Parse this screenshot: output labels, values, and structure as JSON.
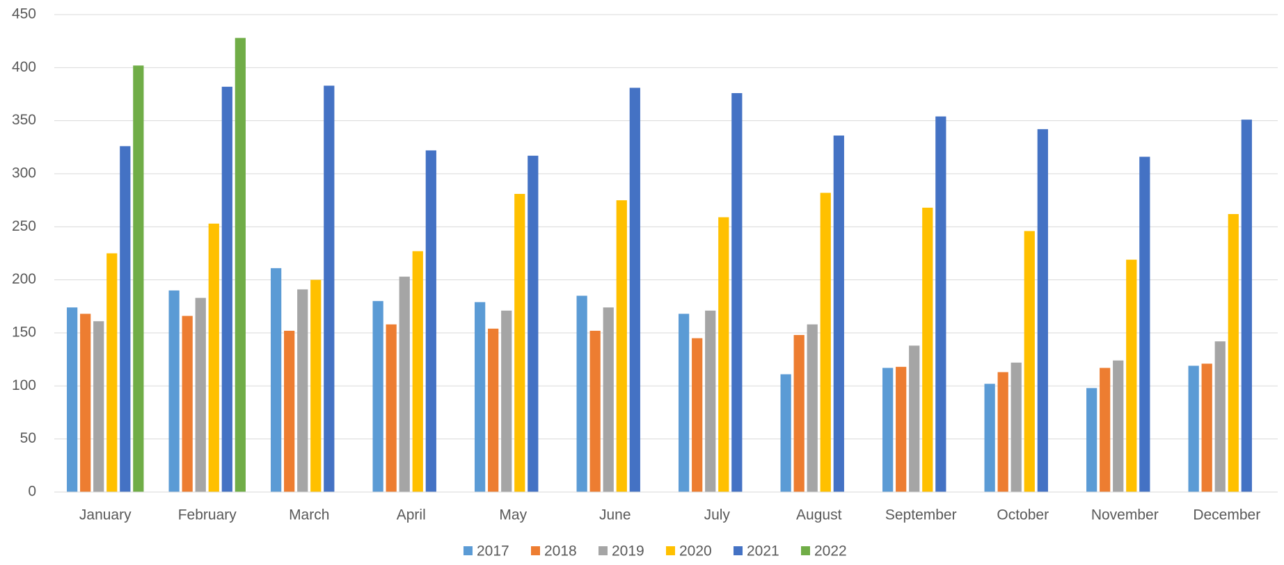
{
  "chart_data": {
    "type": "bar",
    "categories": [
      "January",
      "February",
      "March",
      "April",
      "May",
      "June",
      "July",
      "August",
      "September",
      "October",
      "November",
      "December"
    ],
    "series": [
      {
        "name": "2017",
        "color": "#5b9bd5",
        "values": [
          174,
          190,
          211,
          180,
          179,
          185,
          168,
          111,
          117,
          102,
          98,
          119
        ]
      },
      {
        "name": "2018",
        "color": "#ed7d31",
        "values": [
          168,
          166,
          152,
          158,
          154,
          152,
          145,
          148,
          118,
          113,
          117,
          121
        ]
      },
      {
        "name": "2019",
        "color": "#a5a5a5",
        "values": [
          161,
          183,
          191,
          203,
          171,
          174,
          171,
          158,
          138,
          122,
          124,
          142
        ]
      },
      {
        "name": "2020",
        "color": "#ffc000",
        "values": [
          225,
          253,
          200,
          227,
          281,
          275,
          259,
          282,
          268,
          246,
          219,
          262
        ]
      },
      {
        "name": "2021",
        "color": "#4472c4",
        "values": [
          326,
          382,
          383,
          322,
          317,
          381,
          376,
          336,
          354,
          342,
          316,
          351
        ]
      },
      {
        "name": "2022",
        "color": "#70ad47",
        "values": [
          402,
          428,
          null,
          null,
          null,
          null,
          null,
          null,
          null,
          null,
          null,
          null
        ]
      }
    ],
    "ylim": [
      0,
      450
    ],
    "yticks": [
      0,
      50,
      100,
      150,
      200,
      250,
      300,
      350,
      400,
      450
    ],
    "grid": true,
    "legend": "bottom"
  }
}
